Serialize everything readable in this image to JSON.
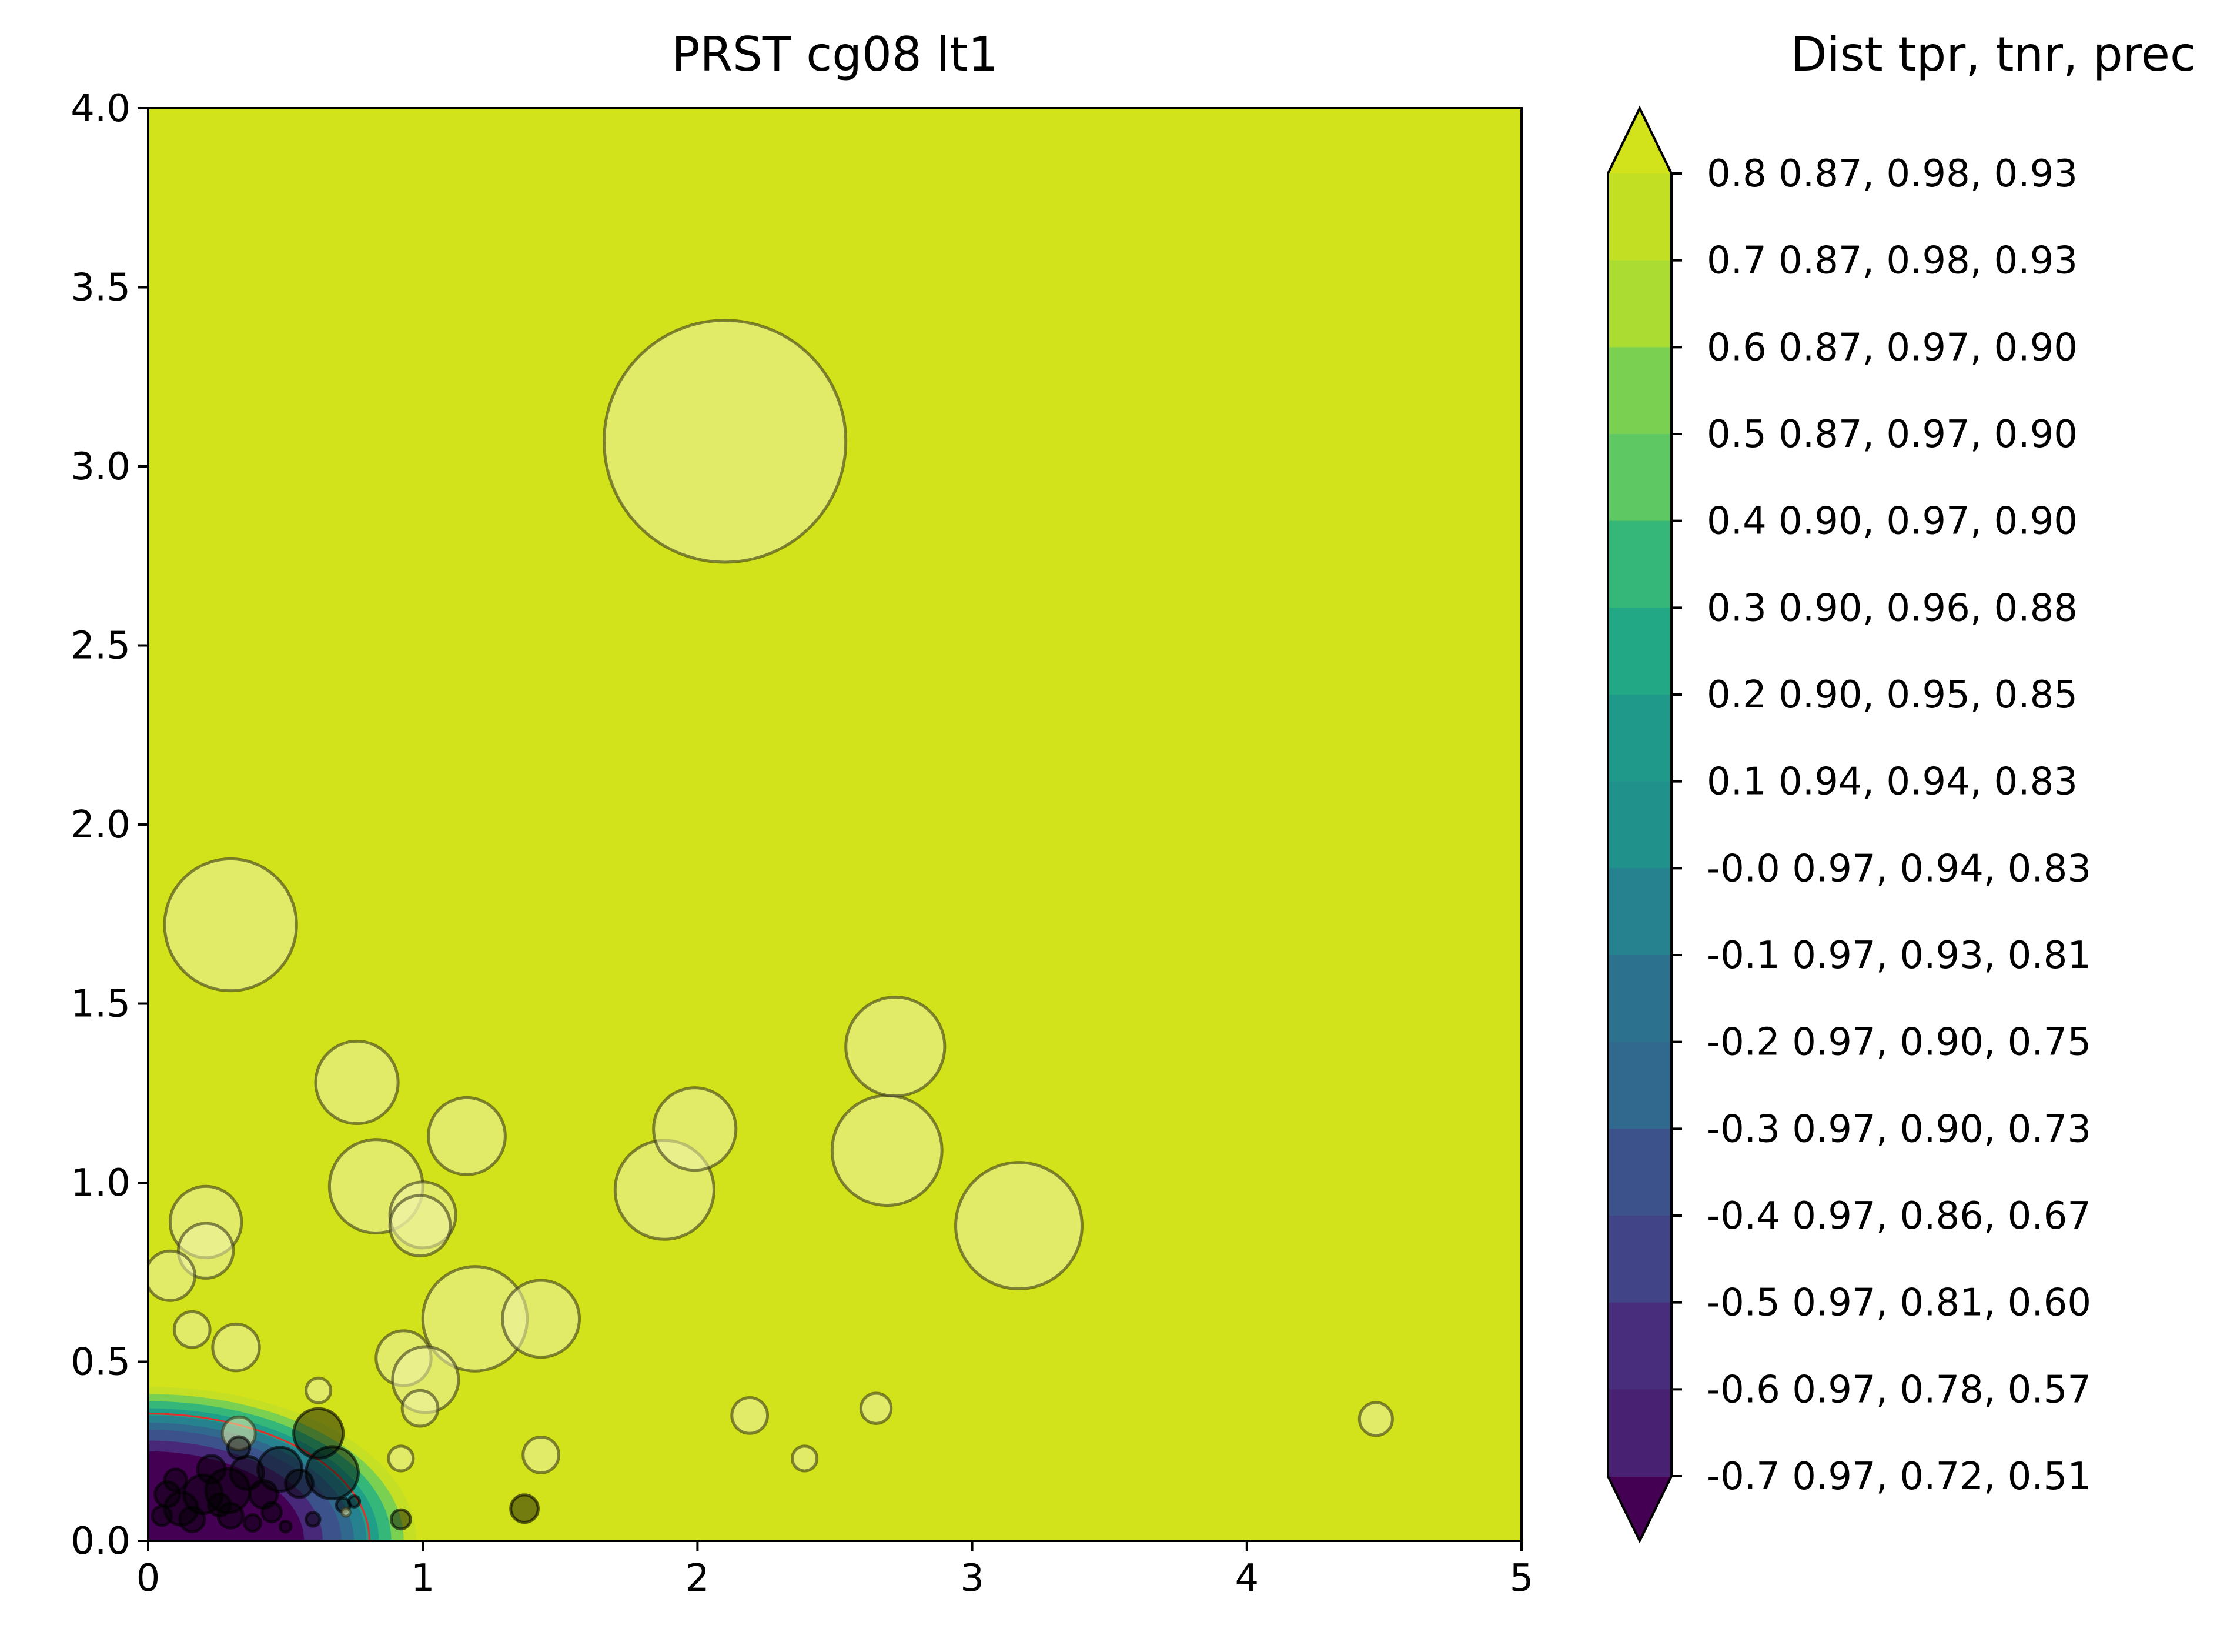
{
  "chart_data": {
    "type": "scatter",
    "title": "PRST cg08 lt1",
    "xlabel": "",
    "ylabel": "",
    "xlim": [
      0,
      5
    ],
    "ylim": [
      0,
      4
    ],
    "x_ticks": [
      "0",
      "1",
      "2",
      "3",
      "4",
      "5"
    ],
    "y_ticks": [
      "0.0",
      "0.5",
      "1.0",
      "1.5",
      "2.0",
      "2.5",
      "3.0",
      "3.5",
      "4.0"
    ],
    "background_fill": "#d2e21b",
    "marker_fill": "#eef2a8",
    "boundary_color": "#e03030",
    "contour_bands": [
      {
        "r": 0.43,
        "color": "#c5df25"
      },
      {
        "r": 0.41,
        "color": "#7ad151"
      },
      {
        "r": 0.39,
        "color": "#35b779"
      },
      {
        "r": 0.37,
        "color": "#1f9e89"
      },
      {
        "r": 0.35,
        "color": "#26828e"
      },
      {
        "r": 0.33,
        "color": "#31688e"
      },
      {
        "r": 0.31,
        "color": "#3b528b"
      },
      {
        "r": 0.28,
        "color": "#482878"
      },
      {
        "r": 0.25,
        "color": "#440154"
      }
    ],
    "boundary_radius": 0.355,
    "points": [
      {
        "x": 2.1,
        "y": 3.07,
        "s": 0.44,
        "dark": false
      },
      {
        "x": 0.3,
        "y": 1.72,
        "s": 0.24,
        "dark": false
      },
      {
        "x": 3.17,
        "y": 0.88,
        "s": 0.23,
        "dark": false
      },
      {
        "x": 2.69,
        "y": 1.09,
        "s": 0.2,
        "dark": false
      },
      {
        "x": 1.19,
        "y": 0.62,
        "s": 0.19,
        "dark": false
      },
      {
        "x": 0.83,
        "y": 0.99,
        "s": 0.17,
        "dark": false
      },
      {
        "x": 1.88,
        "y": 0.98,
        "s": 0.18,
        "dark": false
      },
      {
        "x": 2.72,
        "y": 1.38,
        "s": 0.18,
        "dark": false
      },
      {
        "x": 1.99,
        "y": 1.15,
        "s": 0.15,
        "dark": false
      },
      {
        "x": 1.16,
        "y": 1.13,
        "s": 0.14,
        "dark": false
      },
      {
        "x": 0.76,
        "y": 1.28,
        "s": 0.15,
        "dark": false
      },
      {
        "x": 1.43,
        "y": 0.62,
        "s": 0.14,
        "dark": false
      },
      {
        "x": 0.21,
        "y": 0.89,
        "s": 0.13,
        "dark": false
      },
      {
        "x": 1.0,
        "y": 0.91,
        "s": 0.12,
        "dark": false
      },
      {
        "x": 0.99,
        "y": 0.88,
        "s": 0.11,
        "dark": false
      },
      {
        "x": 0.21,
        "y": 0.81,
        "s": 0.1,
        "dark": false
      },
      {
        "x": 0.08,
        "y": 0.74,
        "s": 0.09,
        "dark": false
      },
      {
        "x": 0.93,
        "y": 0.51,
        "s": 0.1,
        "dark": false
      },
      {
        "x": 1.01,
        "y": 0.45,
        "s": 0.12,
        "dark": false
      },
      {
        "x": 0.32,
        "y": 0.54,
        "s": 0.085,
        "dark": false
      },
      {
        "x": 0.16,
        "y": 0.59,
        "s": 0.065,
        "dark": false
      },
      {
        "x": 0.99,
        "y": 0.37,
        "s": 0.065,
        "dark": false
      },
      {
        "x": 2.19,
        "y": 0.35,
        "s": 0.065,
        "dark": false
      },
      {
        "x": 2.65,
        "y": 0.37,
        "s": 0.055,
        "dark": false
      },
      {
        "x": 4.47,
        "y": 0.34,
        "s": 0.06,
        "dark": false
      },
      {
        "x": 1.43,
        "y": 0.24,
        "s": 0.065,
        "dark": false
      },
      {
        "x": 2.39,
        "y": 0.23,
        "s": 0.045,
        "dark": false
      },
      {
        "x": 0.92,
        "y": 0.23,
        "s": 0.045,
        "dark": false
      },
      {
        "x": 0.62,
        "y": 0.42,
        "s": 0.045,
        "dark": false
      },
      {
        "x": 0.33,
        "y": 0.3,
        "s": 0.06,
        "dark": false
      },
      {
        "x": 0.62,
        "y": 0.3,
        "s": 0.09,
        "dark": true
      },
      {
        "x": 0.67,
        "y": 0.19,
        "s": 0.095,
        "dark": true
      },
      {
        "x": 1.37,
        "y": 0.09,
        "s": 0.05,
        "dark": true
      },
      {
        "x": 0.92,
        "y": 0.06,
        "s": 0.035,
        "dark": true
      },
      {
        "x": 0.48,
        "y": 0.2,
        "s": 0.08,
        "dark": true
      },
      {
        "x": 0.29,
        "y": 0.14,
        "s": 0.08,
        "dark": true
      },
      {
        "x": 0.2,
        "y": 0.13,
        "s": 0.07,
        "dark": true
      },
      {
        "x": 0.12,
        "y": 0.09,
        "s": 0.06,
        "dark": true
      },
      {
        "x": 0.36,
        "y": 0.19,
        "s": 0.06,
        "dark": true
      },
      {
        "x": 0.23,
        "y": 0.2,
        "s": 0.05,
        "dark": true
      },
      {
        "x": 0.42,
        "y": 0.13,
        "s": 0.05,
        "dark": true
      },
      {
        "x": 0.07,
        "y": 0.13,
        "s": 0.045,
        "dark": true
      },
      {
        "x": 0.16,
        "y": 0.06,
        "s": 0.045,
        "dark": true
      },
      {
        "x": 0.3,
        "y": 0.07,
        "s": 0.045,
        "dark": true
      },
      {
        "x": 0.55,
        "y": 0.16,
        "s": 0.05,
        "dark": true
      },
      {
        "x": 0.1,
        "y": 0.17,
        "s": 0.04,
        "dark": true
      },
      {
        "x": 0.33,
        "y": 0.26,
        "s": 0.04,
        "dark": true
      },
      {
        "x": 0.26,
        "y": 0.1,
        "s": 0.04,
        "dark": true
      },
      {
        "x": 0.45,
        "y": 0.08,
        "s": 0.035,
        "dark": true
      },
      {
        "x": 0.6,
        "y": 0.06,
        "s": 0.025,
        "dark": true
      },
      {
        "x": 0.71,
        "y": 0.1,
        "s": 0.025,
        "dark": true
      },
      {
        "x": 0.75,
        "y": 0.11,
        "s": 0.02,
        "dark": true
      },
      {
        "x": 0.05,
        "y": 0.07,
        "s": 0.035,
        "dark": true
      },
      {
        "x": 0.38,
        "y": 0.05,
        "s": 0.03,
        "dark": true
      },
      {
        "x": 0.5,
        "y": 0.04,
        "s": 0.02,
        "dark": true
      },
      {
        "x": 0.72,
        "y": 0.08,
        "s": 0.015,
        "dark": false
      }
    ],
    "colorbar": {
      "title": "Dist  tpr, tnr, prec",
      "entries": [
        {
          "label": "0.8 0.87, 0.98, 0.93",
          "color": "#c2df23"
        },
        {
          "label": "0.7 0.87, 0.98, 0.93",
          "color": "#aadc32"
        },
        {
          "label": "0.6 0.87, 0.97, 0.90",
          "color": "#7ad151"
        },
        {
          "label": "0.5 0.87, 0.97, 0.90",
          "color": "#5ec962"
        },
        {
          "label": "0.4 0.90, 0.97, 0.90",
          "color": "#35b779"
        },
        {
          "label": "0.3 0.90, 0.96, 0.88",
          "color": "#22a884"
        },
        {
          "label": "0.2 0.90, 0.95, 0.85",
          "color": "#1f9a8a"
        },
        {
          "label": "0.1 0.94, 0.94, 0.83",
          "color": "#21918c"
        },
        {
          "label": "-0.0 0.97, 0.94, 0.83",
          "color": "#26828e"
        },
        {
          "label": "-0.1 0.97, 0.93, 0.81",
          "color": "#2c728e"
        },
        {
          "label": "-0.2 0.97, 0.90, 0.75",
          "color": "#31688e"
        },
        {
          "label": "-0.3 0.97, 0.90, 0.73",
          "color": "#3b528b"
        },
        {
          "label": "-0.4 0.97, 0.86, 0.67",
          "color": "#414487"
        },
        {
          "label": "-0.5 0.97, 0.81, 0.60",
          "color": "#472d7b"
        },
        {
          "label": "-0.6 0.97, 0.78, 0.57",
          "color": "#482173"
        },
        {
          "label": "-0.7 0.97, 0.72, 0.51",
          "color": "#440154"
        }
      ],
      "top_extend_color": "#d2e21b",
      "bottom_extend_color": "#440154"
    }
  }
}
